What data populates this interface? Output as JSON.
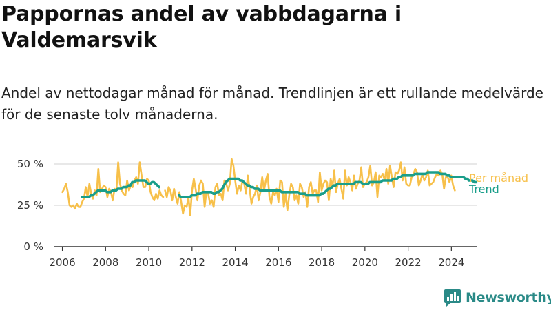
{
  "title": "Pappornas andel av vabbdagarna i Valdemarsvik",
  "subtitle": "Andel av nettodagar månad för månad. Trendlinjen är ett rullande medelvärde för de senaste tolv månaderna.",
  "brand": {
    "name": "Newsworthy",
    "icon": "bar-chart-logo-icon",
    "color": "#2a8a87"
  },
  "chart_data": {
    "type": "line",
    "x_unit": "year",
    "xlim": [
      2005.6,
      2025.2
    ],
    "ylim": [
      0,
      50
    ],
    "y_ticks": [
      0,
      25,
      50
    ],
    "y_tick_labels": [
      "0 %",
      "25 %",
      "50 %"
    ],
    "x_ticks": [
      2006,
      2008,
      2010,
      2012,
      2014,
      2016,
      2018,
      2020,
      2022,
      2024
    ],
    "x_tick_labels": [
      "2006",
      "2008",
      "2010",
      "2012",
      "2014",
      "2016",
      "2018",
      "2020",
      "2022",
      "2024"
    ],
    "grid": true,
    "legend": "end-of-line labels, right",
    "series": [
      {
        "name": "Per månad",
        "color": "#f7c04a",
        "segments": [
          {
            "start": 2006.0,
            "step": 0.0833,
            "values": [
              33,
              35,
              38,
              33,
              25,
              24,
              25,
              23,
              26,
              24,
              24,
              27,
              29,
              36,
              30,
              38,
              32,
              29,
              34,
              31,
              47,
              33,
              35,
              37,
              36,
              30,
              35,
              33,
              28,
              35,
              34,
              51,
              38,
              34,
              32,
              31,
              40,
              34,
              37,
              36,
              40,
              42,
              38,
              51,
              43,
              36,
              36,
              41,
              40,
              33,
              30,
              28,
              32,
              29,
              34,
              31,
              30
            ]
          },
          {
            "start": 2010.75,
            "step": 0.0833,
            "values": [
              34,
              30,
              36,
              34,
              28,
              35,
              30,
              26,
              33,
              27,
              20,
              25,
              24,
              30,
              19,
              34,
              41,
              35,
              28,
              37,
              40,
              38,
              24,
              33,
              32,
              26,
              28,
              24,
              36,
              38,
              31,
              32,
              28,
              40,
              38,
              34,
              38,
              53,
              49,
              40,
              32,
              37,
              34,
              40,
              38,
              32,
              43,
              35,
              26,
              30,
              32,
              37,
              28,
              33,
              42,
              34,
              40,
              44,
              30,
              26,
              33,
              31,
              35,
              27,
              40,
              39,
              24,
              32,
              22,
              31,
              38,
              36,
              28,
              31,
              26,
              38,
              36,
              30,
              33,
              24,
              36,
              39,
              32,
              34,
              34,
              27,
              45,
              34,
              38,
              40,
              39,
              28,
              41,
              36,
              46,
              33,
              38,
              41,
              35,
              29,
              46,
              37,
              42,
              39,
              34,
              43,
              35,
              38,
              40,
              48,
              36,
              38,
              39,
              42,
              49,
              37,
              39,
              45,
              30,
              43,
              42,
              44,
              40,
              47,
              38,
              49,
              42,
              36,
              45,
              44,
              46,
              51,
              40,
              48,
              38,
              37,
              37,
              42,
              44,
              47,
              45,
              37,
              40,
              44,
              40,
              42,
              46,
              37,
              38,
              39,
              42,
              44,
              43,
              46,
              44,
              35,
              42,
              42,
              39,
              43,
              37,
              34
            ]
          }
        ]
      },
      {
        "name": "Trend",
        "color": "#1a9e8a",
        "segments": [
          {
            "start": 2006.9,
            "step": 0.0833,
            "values": [
              30,
              30,
              30,
              30,
              30,
              31,
              31,
              32,
              33,
              34,
              34,
              34,
              34,
              34,
              33,
              33,
              33,
              34,
              34,
              34,
              35,
              35,
              35,
              36,
              36,
              36,
              37,
              37,
              39,
              39,
              40,
              40,
              40,
              40,
              40,
              40,
              39,
              38,
              38,
              39,
              39,
              38,
              37,
              36
            ]
          },
          {
            "start": 2011.4,
            "step": 0.0833,
            "values": [
              31,
              30,
              30,
              30,
              30,
              30,
              30,
              31,
              31,
              31,
              32,
              32,
              32,
              33,
              33,
              33,
              33,
              33,
              33,
              32,
              32,
              33,
              33,
              34,
              35,
              37,
              39,
              40,
              41,
              41,
              41,
              41,
              41,
              41,
              40,
              40,
              39,
              38,
              37,
              37,
              36,
              36,
              35,
              35,
              35,
              34,
              34,
              34,
              34,
              34,
              34,
              34,
              34,
              34,
              34,
              34,
              34,
              33,
              33,
              33,
              33,
              33,
              33,
              33,
              33,
              33,
              33,
              32,
              32,
              32,
              32,
              31,
              31,
              31,
              31,
              31,
              31,
              31,
              31,
              32,
              32,
              33,
              34,
              35,
              35,
              36,
              37,
              37,
              38,
              38,
              38,
              38,
              38,
              38,
              38,
              38,
              38,
              38,
              39,
              39,
              39,
              39,
              38,
              38,
              38,
              38,
              39,
              39,
              39,
              39,
              39,
              39,
              39,
              40,
              40,
              40,
              40,
              40,
              40,
              41,
              41,
              41,
              42,
              42,
              43,
              43,
              43,
              43,
              43,
              43,
              43,
              44,
              44,
              44,
              44,
              44,
              44,
              44,
              45,
              45,
              45,
              45,
              45,
              45,
              45,
              44,
              44,
              44,
              44,
              43,
              43,
              42,
              42,
              42,
              42,
              42,
              42,
              42,
              42,
              41,
              41,
              40,
              40,
              40,
              39,
              39
            ]
          }
        ]
      }
    ]
  }
}
